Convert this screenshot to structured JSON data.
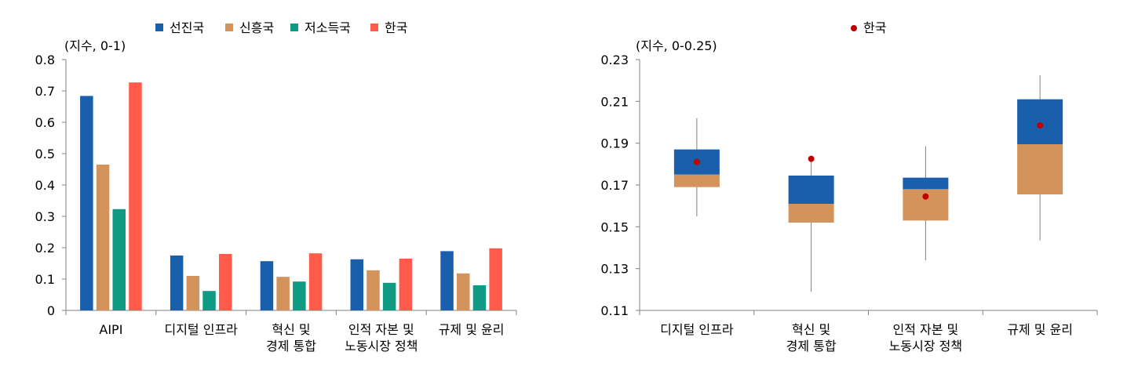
{
  "chart_data": [
    {
      "type": "bar",
      "ylabel": "(지수, 0-1)",
      "ylim": [
        0,
        0.8
      ],
      "yticks": [
        "0",
        "0.1",
        "0.2",
        "0.3",
        "0.4",
        "0.5",
        "0.6",
        "0.7",
        "0.8"
      ],
      "grid": false,
      "legend_position": "top-center",
      "categories": [
        [
          "AIPI"
        ],
        [
          "디지털 인프라"
        ],
        [
          "혁신 및",
          "경제 통합"
        ],
        [
          "인적 자본 및",
          "노동시장 정책"
        ],
        [
          "규제 및 윤리"
        ]
      ],
      "series": [
        {
          "name": "선진국",
          "color": "#1a5fac",
          "values": [
            0.684,
            0.175,
            0.157,
            0.163,
            0.189
          ]
        },
        {
          "name": "신흥국",
          "color": "#d4935a",
          "values": [
            0.465,
            0.11,
            0.107,
            0.128,
            0.118
          ]
        },
        {
          "name": "저소득국",
          "color": "#0f9a84",
          "values": [
            0.323,
            0.062,
            0.092,
            0.088,
            0.08
          ]
        },
        {
          "name": "한국",
          "color": "#ff5a4a",
          "values": [
            0.727,
            0.18,
            0.182,
            0.165,
            0.198
          ]
        }
      ]
    },
    {
      "type": "box",
      "ylabel": "(지수, 0-0.25)",
      "ylim": [
        0.11,
        0.23
      ],
      "yticks": [
        "0.11",
        "0.13",
        "0.15",
        "0.17",
        "0.19",
        "0.21",
        "0.23"
      ],
      "grid": false,
      "legend_position": "top-center",
      "legend": [
        {
          "name": "한국",
          "color": "#c00000"
        }
      ],
      "box_colors": {
        "upper": "#1a5fac",
        "lower": "#d4935a",
        "whisker": "#808080"
      },
      "categories": [
        [
          "디지털 인프라"
        ],
        [
          "혁신 및",
          "경제 통합"
        ],
        [
          "인적 자본 및",
          "노동시장 정책"
        ],
        [
          "규제 및 윤리"
        ]
      ],
      "boxes": [
        {
          "min": 0.155,
          "q1": 0.169,
          "median": 0.175,
          "q3": 0.187,
          "max": 0.202,
          "korea": 0.181
        },
        {
          "min": 0.119,
          "q1": 0.152,
          "median": 0.161,
          "q3": 0.1745,
          "max": 0.181,
          "korea": 0.1825
        },
        {
          "min": 0.134,
          "q1": 0.153,
          "median": 0.168,
          "q3": 0.1735,
          "max": 0.1885,
          "korea": 0.1645
        },
        {
          "min": 0.1435,
          "q1": 0.1655,
          "median": 0.1895,
          "q3": 0.211,
          "max": 0.2225,
          "korea": 0.1985
        }
      ]
    }
  ]
}
